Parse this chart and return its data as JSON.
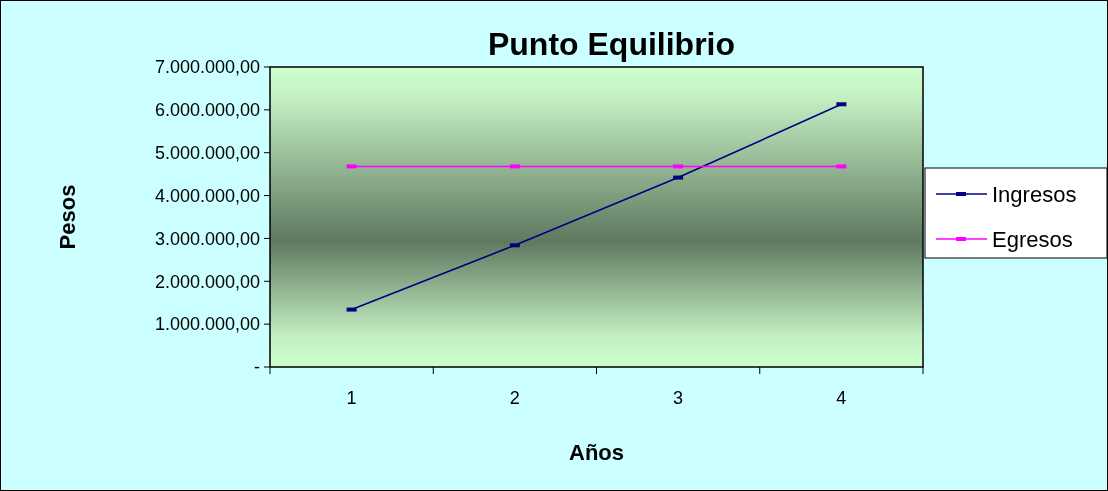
{
  "chart_data": {
    "type": "line",
    "title": "Punto Equilibrio",
    "xlabel": "Años",
    "ylabel": "Pesos",
    "categories": [
      "1",
      "2",
      "3",
      "4"
    ],
    "series": [
      {
        "name": "Ingresos",
        "color": "#000080",
        "values": [
          1340000,
          2840000,
          4420000,
          6130000
        ]
      },
      {
        "name": "Egresos",
        "color": "#ff00ff",
        "values": [
          4680000,
          4680000,
          4680000,
          4680000
        ]
      }
    ],
    "ylim": [
      0,
      7000000
    ],
    "yticks": [
      {
        "value": 0,
        "label": "-"
      },
      {
        "value": 1000000,
        "label": "1.000.000,00"
      },
      {
        "value": 2000000,
        "label": "2.000.000,00"
      },
      {
        "value": 3000000,
        "label": "3.000.000,00"
      },
      {
        "value": 4000000,
        "label": "4.000.000,00"
      },
      {
        "value": 5000000,
        "label": "5.000.000,00"
      },
      {
        "value": 6000000,
        "label": "6.000.000,00"
      },
      {
        "value": 7000000,
        "label": "7.000.000,00"
      }
    ],
    "legend": "right",
    "marker": "square",
    "line_style": "solid",
    "grid": false
  }
}
